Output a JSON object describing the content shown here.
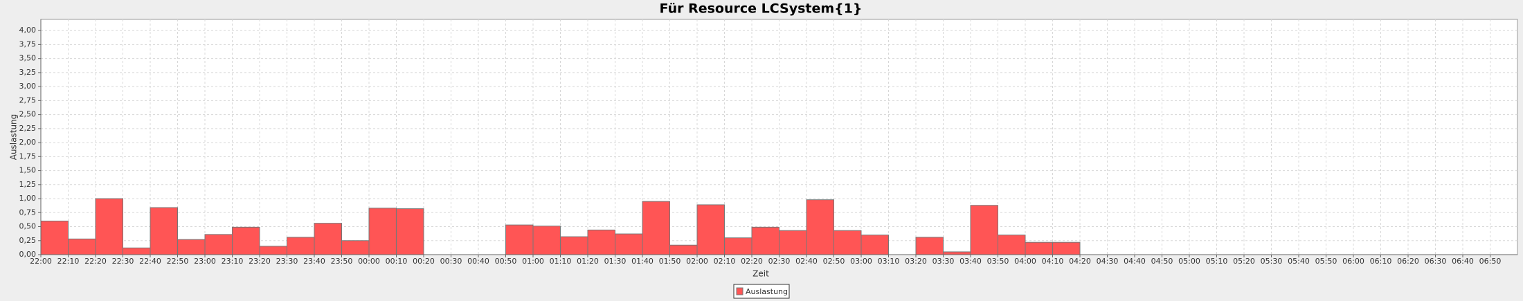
{
  "chart_data": {
    "type": "bar",
    "title": "Für Resource LCSystem{1}",
    "x_label": "Zeit",
    "y_label": "Auslastung",
    "categories": [
      "22:00",
      "22:10",
      "22:20",
      "22:30",
      "22:40",
      "22:50",
      "23:00",
      "23:10",
      "23:20",
      "23:30",
      "23:40",
      "23:50",
      "00:00",
      "00:10",
      "00:20",
      "00:30",
      "00:40",
      "00:50",
      "01:00",
      "01:10",
      "01:20",
      "01:30",
      "01:40",
      "01:50",
      "02:00",
      "02:10",
      "02:20",
      "02:30",
      "02:40",
      "02:50",
      "03:00",
      "03:10",
      "03:20",
      "03:30",
      "03:40",
      "03:50",
      "04:00",
      "04:10",
      "04:20",
      "04:30",
      "04:40",
      "04:50",
      "05:00",
      "05:10",
      "05:20",
      "05:30",
      "05:40",
      "05:50",
      "06:00",
      "06:10",
      "06:20",
      "06:30",
      "06:40",
      "06:50"
    ],
    "series": [
      {
        "name": "Auslastung",
        "color": "#ff5555",
        "values": [
          0.6,
          0.28,
          1.0,
          0.12,
          0.84,
          0.27,
          0.36,
          0.49,
          0.15,
          0.31,
          0.56,
          0.25,
          0.83,
          0.82,
          null,
          null,
          null,
          0.53,
          0.51,
          0.32,
          0.44,
          0.37,
          0.95,
          0.17,
          0.89,
          0.3,
          0.49,
          0.43,
          0.98,
          0.43,
          0.35,
          null,
          0.31,
          0.05,
          0.88,
          0.35,
          0.22,
          0.22,
          null,
          null,
          null,
          null,
          null,
          null,
          null,
          null,
          null,
          null,
          null,
          null,
          null,
          null,
          null,
          null
        ]
      }
    ],
    "ylim": [
      0,
      4.2
    ],
    "yticks": [
      {
        "value": 0,
        "label": "0,00"
      },
      {
        "value": 0.25,
        "label": "0,25"
      },
      {
        "value": 0.5,
        "label": "0,50"
      },
      {
        "value": 0.75,
        "label": "0,75"
      },
      {
        "value": 1,
        "label": "1,00"
      },
      {
        "value": 1.25,
        "label": "1,25"
      },
      {
        "value": 1.5,
        "label": "1,50"
      },
      {
        "value": 1.75,
        "label": "1,75"
      },
      {
        "value": 2,
        "label": "2,00"
      },
      {
        "value": 2.25,
        "label": "2,25"
      },
      {
        "value": 2.5,
        "label": "2,50"
      },
      {
        "value": 2.75,
        "label": "2,75"
      },
      {
        "value": 3,
        "label": "3,00"
      },
      {
        "value": 3.25,
        "label": "3,25"
      },
      {
        "value": 3.5,
        "label": "3,50"
      },
      {
        "value": 3.75,
        "label": "3,75"
      },
      {
        "value": 4,
        "label": "4,00"
      }
    ],
    "grid": true,
    "legend": "bottom"
  }
}
